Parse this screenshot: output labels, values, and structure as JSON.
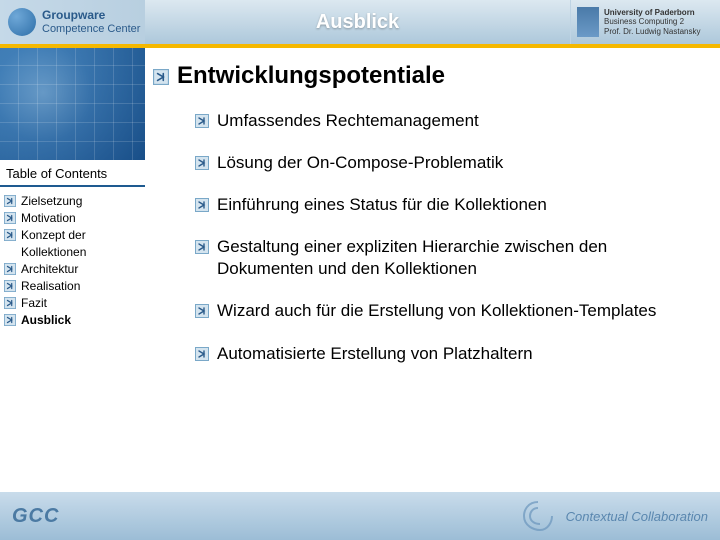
{
  "header": {
    "title": "Ausblick",
    "logo_left": {
      "line1": "Groupware",
      "line2": "Competence Center"
    },
    "logo_right": {
      "line1": "University of Paderborn",
      "line2": "Business Computing 2",
      "line3": "Prof. Dr. Ludwig Nastansky"
    }
  },
  "sidebar": {
    "toc_title": "Table of Contents",
    "items": [
      {
        "label": "Zielsetzung",
        "bold": false
      },
      {
        "label": "Motivation",
        "bold": false
      },
      {
        "label": "Konzept der Kollektionen",
        "bold": false
      },
      {
        "label": "Architektur",
        "bold": false
      },
      {
        "label": "Realisation",
        "bold": false
      },
      {
        "label": "Fazit",
        "bold": false
      },
      {
        "label": "Ausblick",
        "bold": true
      }
    ]
  },
  "content": {
    "heading": "Entwicklungspotentiale",
    "points": [
      "Umfassendes Rechtemanagement",
      "Lösung der On-Compose-Problematik",
      "Einführung eines Status für die Kollektionen",
      "Gestaltung einer expliziten Hierarchie zwischen den Dokumenten und den Kollektionen",
      "Wizard auch für die Erstellung von Kollektionen-Templates",
      "Automatisierte Erstellung von Platzhaltern"
    ]
  },
  "footer": {
    "left": "GCC",
    "right": "Contextual Collaboration"
  },
  "style": {
    "accent_color": "#f5b800",
    "bullet_border": "#7aa8c8",
    "bullet_fill": "#d4e4ef",
    "bullet_arrow": "#2a5a8a",
    "header_text": "#ffffff",
    "toc_underline": "#1e5a90"
  }
}
